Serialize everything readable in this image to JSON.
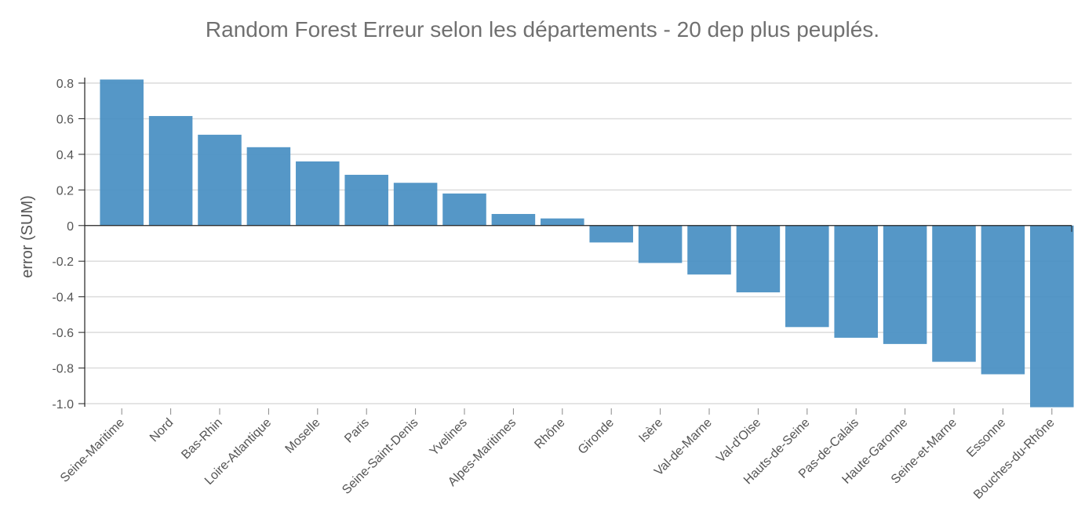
{
  "chart_data": {
    "type": "bar",
    "title": "Random Forest Erreur selon les départements - 20 dep plus peuplés.",
    "xlabel": "",
    "ylabel": "error (SUM)",
    "ylim": [
      -1.0,
      0.8
    ],
    "yticks": [
      "0.8",
      "0.6",
      "0.4",
      "0.2",
      "0",
      "-0.2",
      "-0.4",
      "-0.6",
      "-0.8",
      "-1.0"
    ],
    "ytick_values": [
      0.8,
      0.6,
      0.4,
      0.2,
      0,
      -0.2,
      -0.4,
      -0.6,
      -0.8,
      -1.0
    ],
    "grid": true,
    "bar_color": "#4a90c4",
    "categories": [
      "Seine-Maritime",
      "Nord",
      "Bas-Rhin",
      "Loire-Atlantique",
      "Moselle",
      "Paris",
      "Seine-Saint-Denis",
      "Yvelines",
      "Alpes-Maritimes",
      "Rhône",
      "Gironde",
      "Isère",
      "Val-de-Marne",
      "Val-d'Oise",
      "Hauts-de-Seine",
      "Pas-de-Calais",
      "Haute-Garonne",
      "Seine-et-Marne",
      "Essonne",
      "Bouches-du-Rhône"
    ],
    "values": [
      0.82,
      0.615,
      0.51,
      0.44,
      0.36,
      0.285,
      0.24,
      0.18,
      0.065,
      0.04,
      -0.095,
      -0.21,
      -0.275,
      -0.375,
      -0.57,
      -0.63,
      -0.665,
      -0.765,
      -0.835,
      -1.02
    ]
  }
}
